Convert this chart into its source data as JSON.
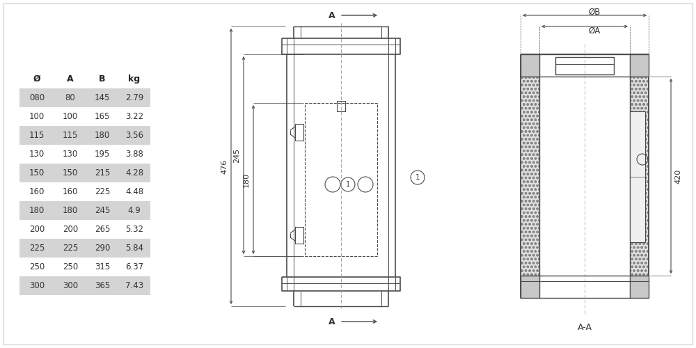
{
  "bg_color": "#ffffff",
  "table_headers": [
    "Ø",
    "A",
    "B",
    "kg"
  ],
  "table_rows": [
    [
      "080",
      "80",
      "145",
      "2.79"
    ],
    [
      "100",
      "100",
      "165",
      "3.22"
    ],
    [
      "115",
      "115",
      "180",
      "3.56"
    ],
    [
      "130",
      "130",
      "195",
      "3.88"
    ],
    [
      "150",
      "150",
      "215",
      "4.28"
    ],
    [
      "160",
      "160",
      "225",
      "4.48"
    ],
    [
      "180",
      "180",
      "245",
      "4.9"
    ],
    [
      "200",
      "200",
      "265",
      "5.32"
    ],
    [
      "225",
      "225",
      "290",
      "5.84"
    ],
    [
      "250",
      "250",
      "315",
      "6.37"
    ],
    [
      "300",
      "300",
      "365",
      "7.43"
    ]
  ],
  "shaded_rows": [
    0,
    2,
    4,
    6,
    8,
    10
  ],
  "row_bg_shaded": "#d4d4d4",
  "row_bg_plain": "#ffffff",
  "line_color": "#4a4a4a",
  "dim_color": "#4a4a4a",
  "text_color": "#333333",
  "header_color": "#222222"
}
